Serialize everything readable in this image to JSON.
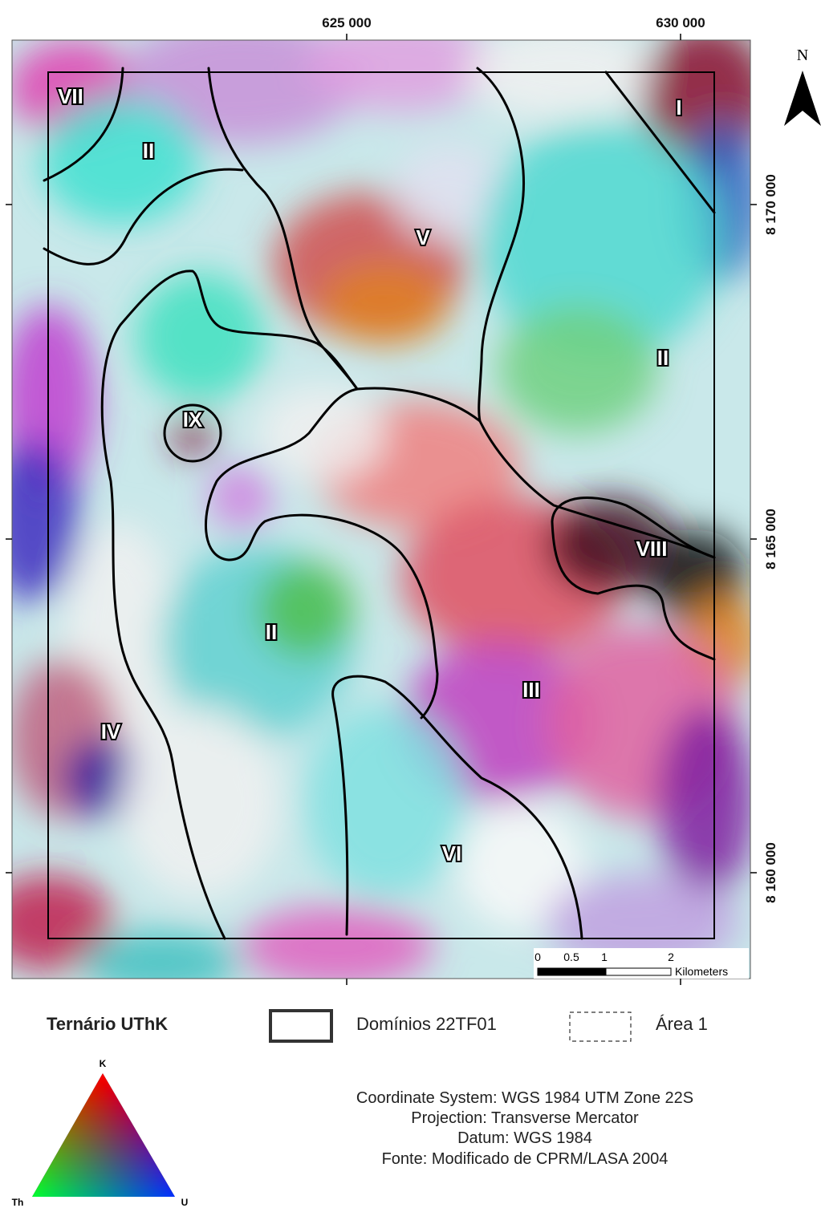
{
  "map": {
    "x_coordinates": [
      "625 000",
      "630 000"
    ],
    "y_coordinates": [
      "8 170 000",
      "8 165 000",
      "8 160 000"
    ],
    "north": "N",
    "domains": [
      "VII",
      "II",
      "I",
      "V",
      "II",
      "IX",
      "VIII",
      "II",
      "III",
      "IV",
      "VI"
    ],
    "scale_bar": {
      "labels": [
        "0",
        "0.5",
        "1",
        "2"
      ],
      "unit": "Kilometers"
    }
  },
  "legend": {
    "ternary_title": "Ternário UThK",
    "domains_label": "Domínios 22TF01",
    "area_label": "Área 1",
    "ternary_vertices": {
      "top": "K",
      "left": "Th",
      "right": "U"
    }
  },
  "credits": [
    "Coordinate System: WGS 1984 UTM Zone 22S",
    "Projection: Transverse Mercator",
    "Datum: WGS 1984",
    "Fonte: Modificado de CPRM/LASA 2004"
  ]
}
